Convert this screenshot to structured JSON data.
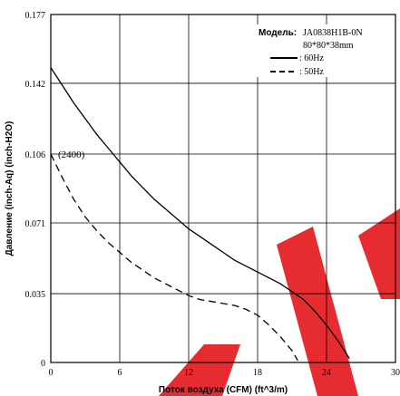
{
  "chart_data": {
    "type": "line",
    "xlabel": "Поток воздуха (CFM) (ft^3/m)",
    "ylabel": "Давление (inch-Aq) (inch-H2O)",
    "x_ticks": [
      "0",
      "6",
      "12",
      "18",
      "24",
      "30"
    ],
    "y_ticks": [
      "0",
      "0.035",
      "0.071",
      "0.106",
      "0.142",
      "0.177"
    ],
    "xlim": [
      0,
      30
    ],
    "ylim": [
      0,
      0.177
    ],
    "grid": true,
    "annotation": "(2400)",
    "legend": {
      "model_label": "Модель:",
      "model": "JA0838H1B-0N",
      "size": "80*80*38mm",
      "placement": "top-right"
    },
    "series": [
      {
        "name": ": 60Hz",
        "style": "solid",
        "x": [
          0,
          1,
          2,
          3,
          4,
          5,
          6,
          7,
          8,
          9,
          10,
          11,
          12,
          13,
          14,
          15,
          16,
          17,
          18,
          19,
          20,
          21,
          22,
          23,
          24,
          25,
          26
        ],
        "y": [
          0.15,
          0.141,
          0.132,
          0.124,
          0.116,
          0.109,
          0.102,
          0.095,
          0.089,
          0.083,
          0.078,
          0.073,
          0.068,
          0.064,
          0.06,
          0.056,
          0.052,
          0.049,
          0.046,
          0.043,
          0.04,
          0.036,
          0.032,
          0.026,
          0.019,
          0.011,
          0.002
        ]
      },
      {
        "name": ": 50Hz",
        "style": "dashed",
        "x": [
          0,
          1,
          2,
          3,
          4,
          5,
          6,
          7,
          8,
          9,
          10,
          11,
          12,
          13,
          14,
          15,
          16,
          17,
          18,
          19,
          20,
          21,
          21.5
        ],
        "y": [
          0.106,
          0.094,
          0.083,
          0.074,
          0.067,
          0.061,
          0.056,
          0.051,
          0.047,
          0.043,
          0.04,
          0.037,
          0.034,
          0.032,
          0.031,
          0.03,
          0.029,
          0.027,
          0.024,
          0.019,
          0.013,
          0.006,
          0.001
        ]
      }
    ]
  }
}
